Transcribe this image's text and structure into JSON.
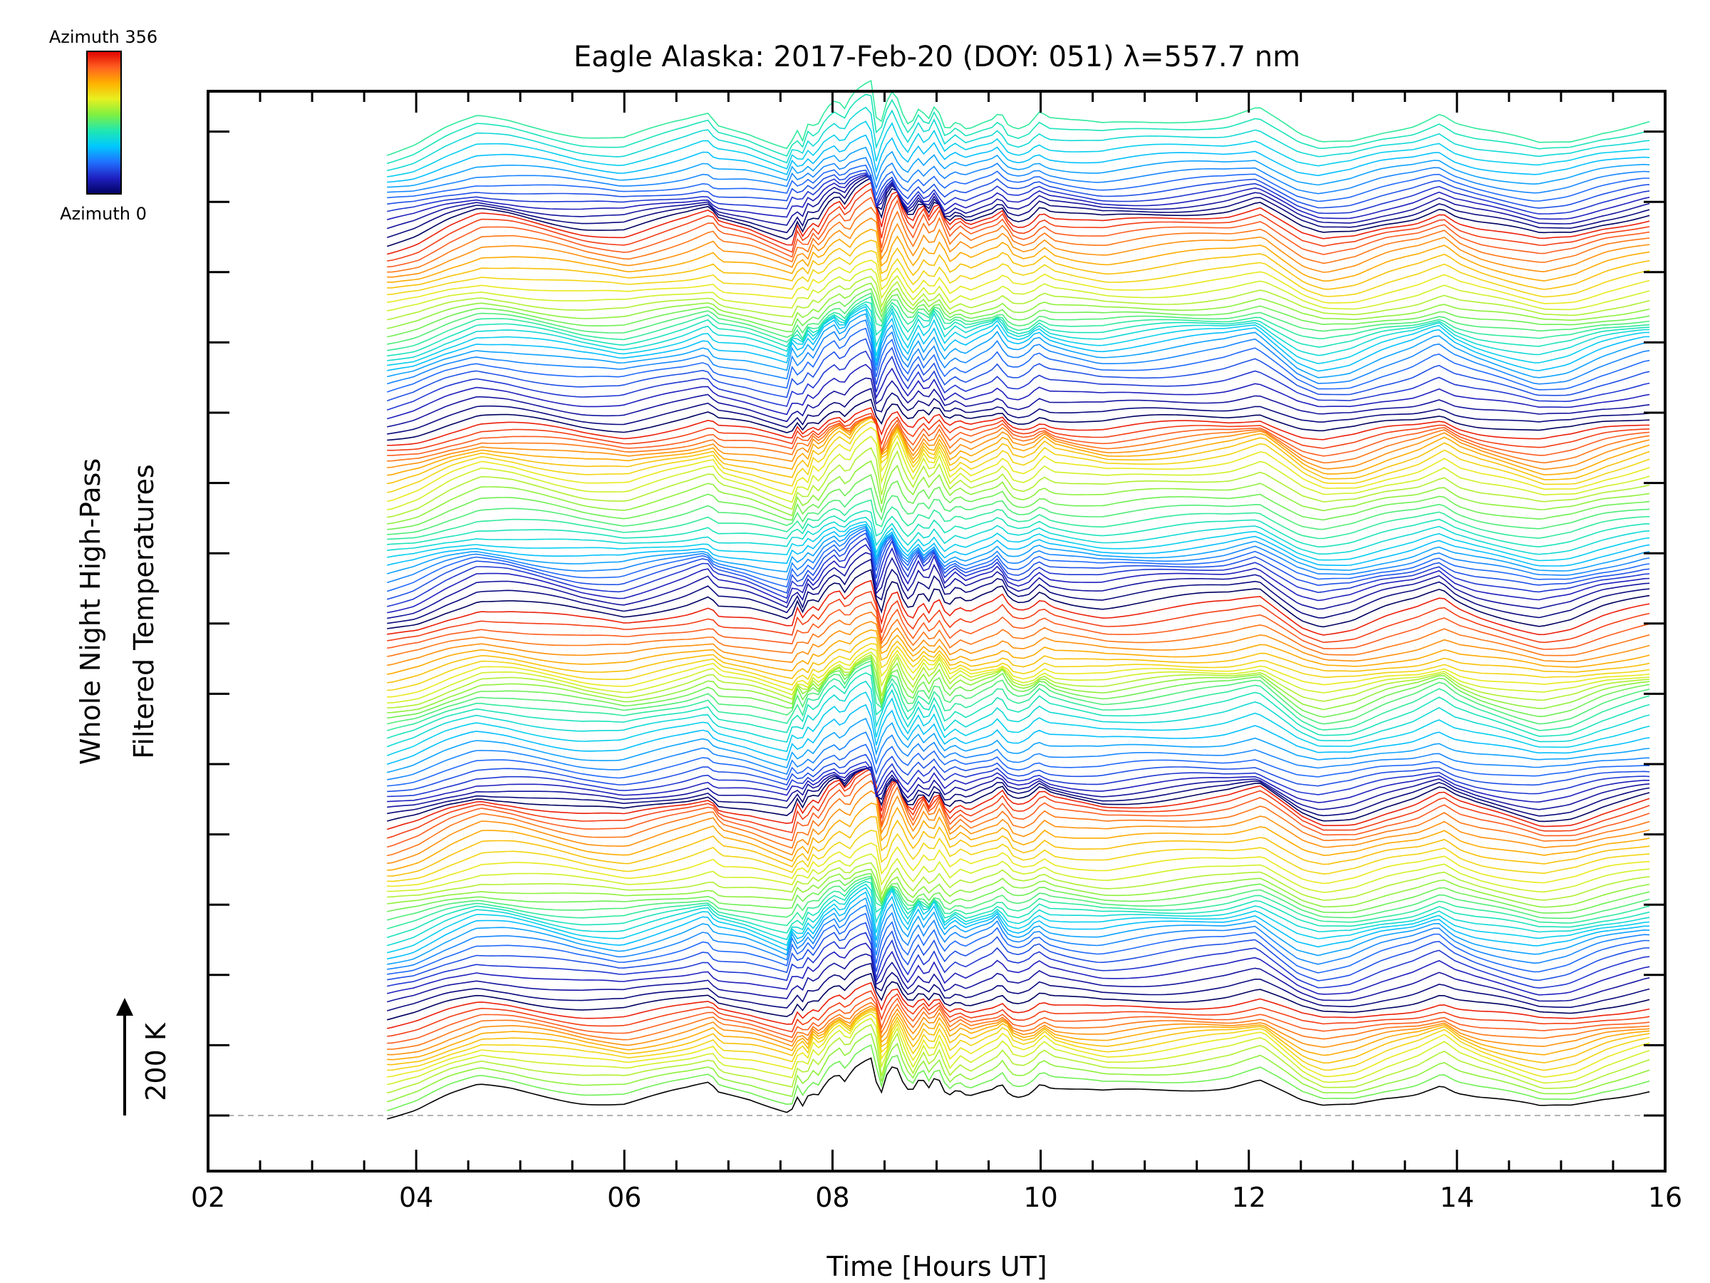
{
  "chart_data": {
    "type": "line",
    "title": "Eagle Alaska: 2017-Feb-20 (DOY: 051) λ=557.7 nm",
    "xlabel": "Time [Hours UT]",
    "ylabel_line1": "Whole Night High-Pass",
    "ylabel_line2": "Filtered Temperatures",
    "xlim": [
      2,
      16
    ],
    "x_ticks": [
      "02",
      "04",
      "06",
      "08",
      "10",
      "12",
      "14",
      "16"
    ],
    "scale_bar_label": "200 K",
    "colorbar": {
      "top_label": "Azimuth 356",
      "bottom_label": "Azimuth 0",
      "colors": [
        "#000060",
        "#2020c0",
        "#2070ff",
        "#00c8ff",
        "#20e8b0",
        "#80f040",
        "#e8f020",
        "#ffb000",
        "#ff6020",
        "#e00000"
      ]
    },
    "series_count": 140,
    "azimuth_range": [
      0,
      356
    ],
    "time_start": 3.72,
    "time_end": 15.85,
    "base_profile": {
      "x": [
        3.72,
        4.0,
        4.3,
        4.6,
        4.9,
        5.2,
        5.6,
        6.0,
        6.3,
        6.6,
        6.82,
        6.9,
        7.2,
        7.6,
        7.65,
        7.72,
        7.78,
        7.85,
        7.95,
        8.05,
        8.12,
        8.2,
        8.3,
        8.38,
        8.45,
        8.52,
        8.6,
        8.67,
        8.75,
        8.85,
        8.92,
        9.0,
        9.1,
        9.2,
        9.3,
        9.45,
        9.55,
        9.62,
        9.7,
        9.8,
        9.9,
        10.0,
        10.1,
        10.3,
        10.6,
        11.0,
        11.4,
        11.8,
        12.1,
        12.3,
        12.5,
        12.7,
        13.0,
        13.3,
        13.6,
        13.85,
        14.0,
        14.2,
        14.5,
        14.8,
        15.1,
        15.4,
        15.85
      ],
      "y": [
        0,
        10,
        30,
        45,
        42,
        35,
        25,
        20,
        30,
        40,
        50,
        35,
        28,
        10,
        40,
        20,
        45,
        35,
        60,
        70,
        55,
        75,
        85,
        90,
        20,
        60,
        80,
        50,
        30,
        60,
        40,
        65,
        30,
        45,
        35,
        45,
        50,
        60,
        40,
        35,
        40,
        55,
        45,
        40,
        35,
        40,
        45,
        50,
        60,
        40,
        20,
        10,
        15,
        30,
        40,
        55,
        40,
        30,
        20,
        10,
        15,
        30,
        45
      ]
    }
  }
}
